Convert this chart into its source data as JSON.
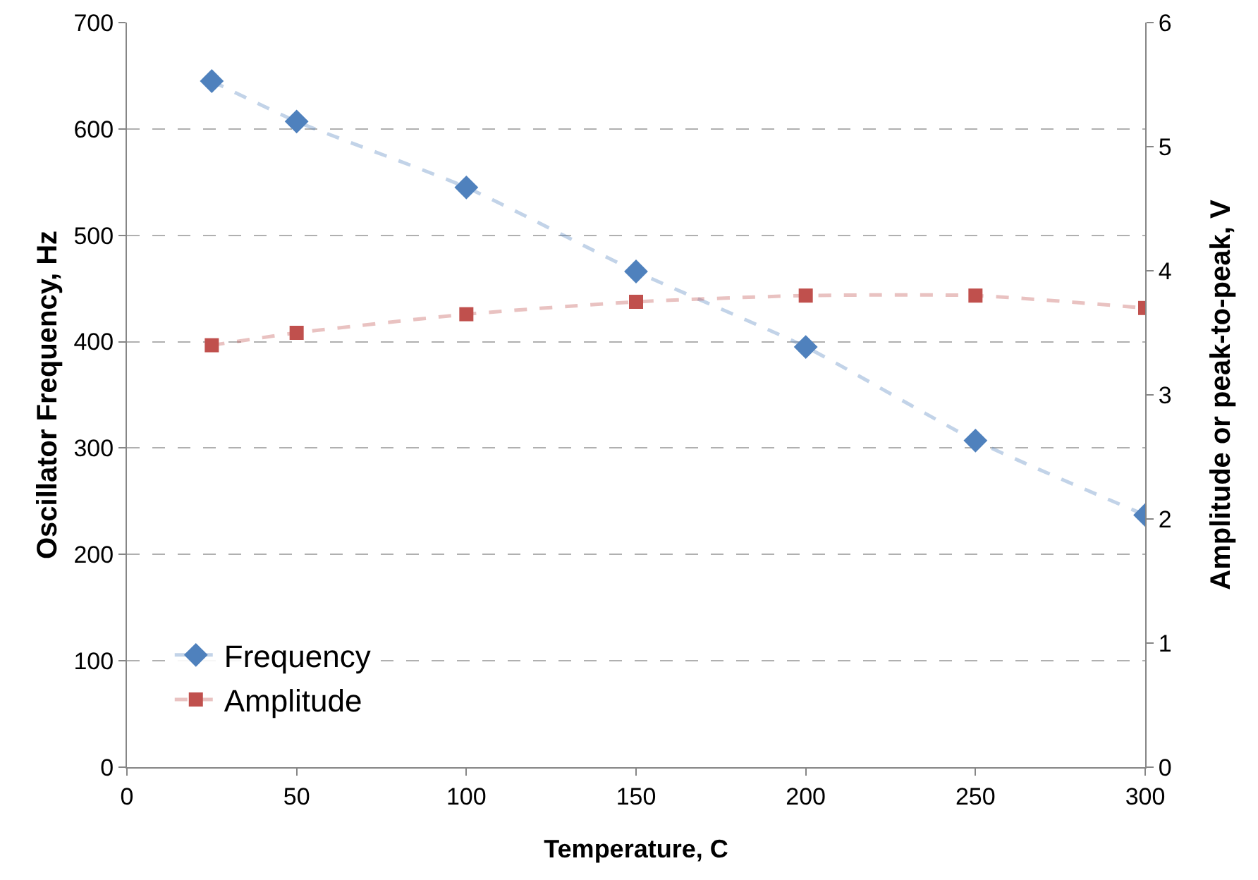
{
  "chart_data": {
    "type": "line",
    "xlabel": "Temperature, C",
    "ylabel": "Oscillator Frequency, Hz",
    "y2label": "Amplitude or peak-to-peak, V",
    "x": [
      25,
      50,
      100,
      150,
      200,
      250,
      300
    ],
    "series": [
      {
        "name": "Frequency",
        "color": "#4f81bd",
        "marker": "diamond",
        "values": [
          645,
          607,
          545,
          466,
          395,
          307,
          237
        ]
      },
      {
        "name": "Amplitude",
        "color": "#c0504d",
        "marker": "square",
        "axis": "y2",
        "values": [
          3.4,
          3.5,
          3.65,
          3.75,
          3.8,
          3.8,
          3.7
        ]
      }
    ],
    "xlim": [
      0,
      300
    ],
    "xticks": [
      0,
      50,
      100,
      150,
      200,
      250,
      300
    ],
    "ylim": [
      0,
      700
    ],
    "yticks": [
      0,
      100,
      200,
      300,
      400,
      500,
      600,
      700
    ],
    "y2lim": [
      0,
      6
    ],
    "y2ticks": [
      0,
      1,
      2,
      3,
      4,
      5,
      6
    ],
    "grid": "y",
    "legend": "bottom left",
    "line_style": "dashed"
  }
}
